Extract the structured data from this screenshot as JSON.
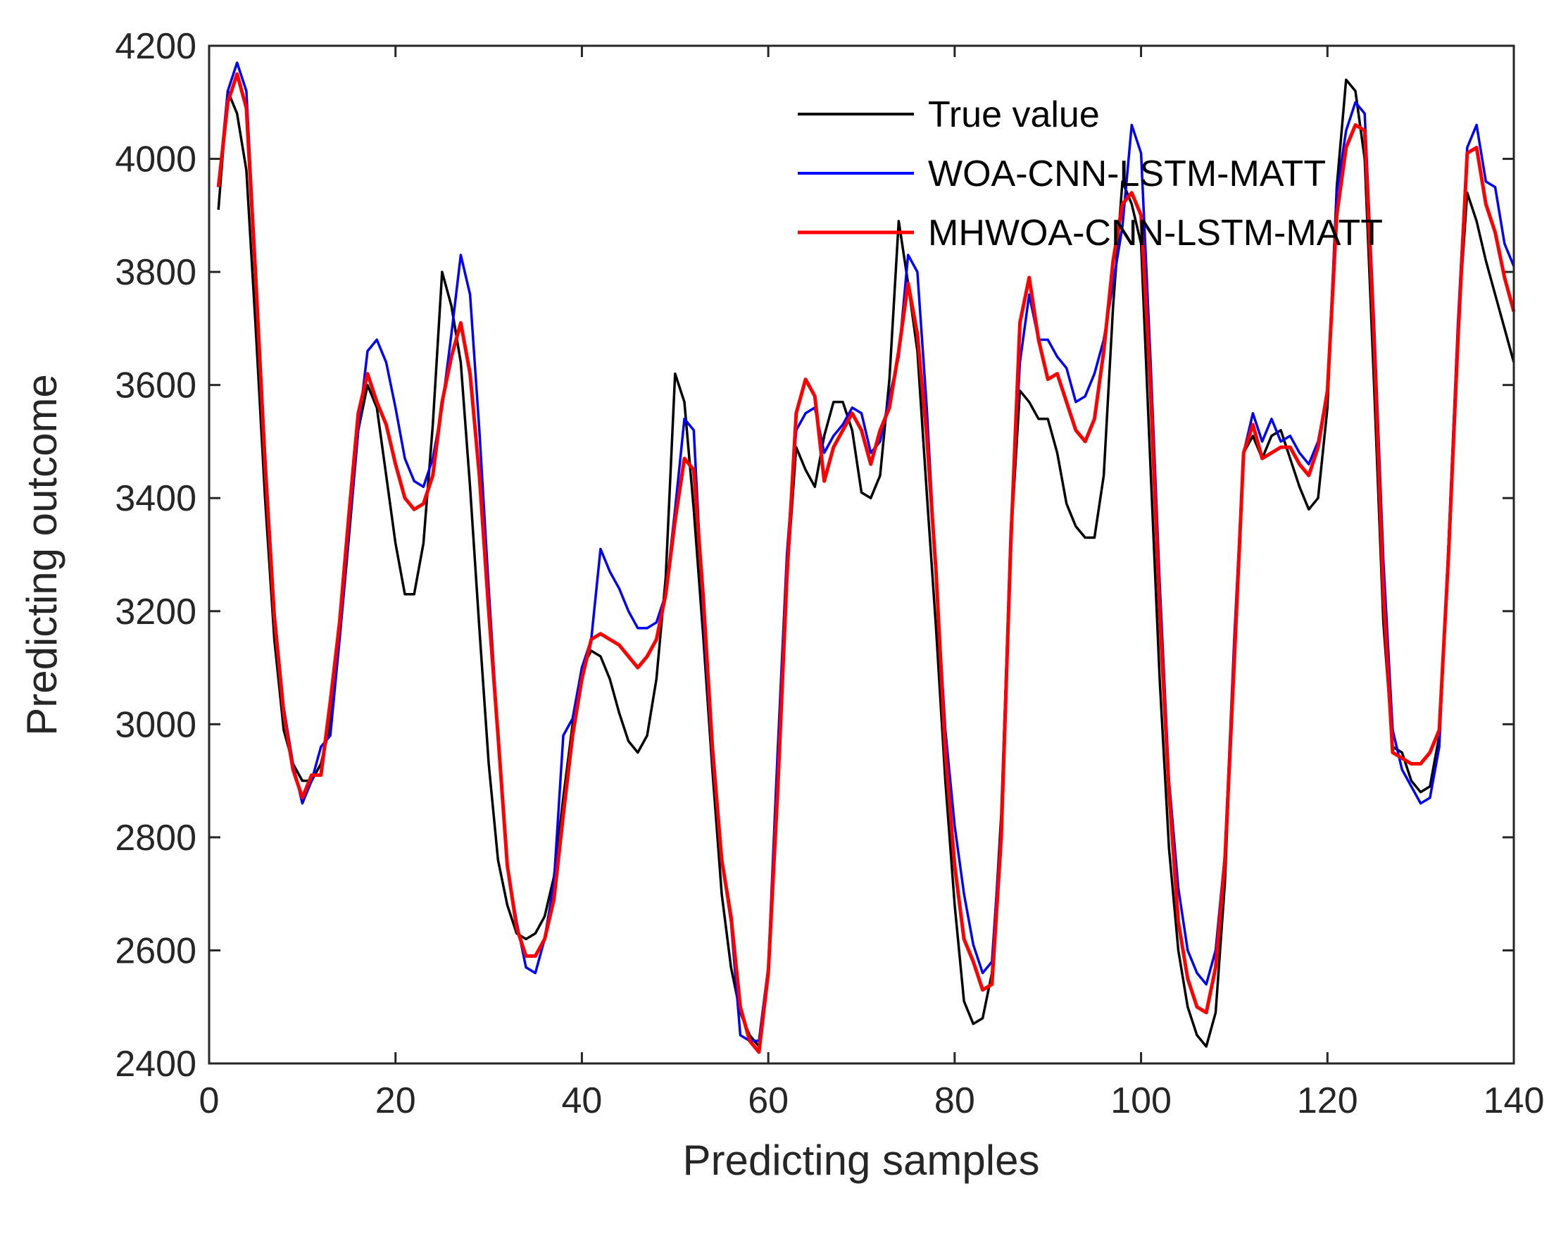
{
  "chart_data": {
    "type": "line",
    "title": "",
    "xlabel": "Predicting samples",
    "ylabel": "Predicting outcome",
    "xlim": [
      0,
      140
    ],
    "ylim": [
      2400,
      4200
    ],
    "xticks": [
      0,
      20,
      40,
      60,
      80,
      100,
      120,
      140
    ],
    "yticks": [
      2400,
      2600,
      2800,
      3000,
      3200,
      3400,
      3600,
      3800,
      4000,
      4200
    ],
    "grid": false,
    "legend_position": "top-right",
    "x": [
      1,
      2,
      3,
      4,
      5,
      6,
      7,
      8,
      9,
      10,
      11,
      12,
      13,
      14,
      15,
      16,
      17,
      18,
      19,
      20,
      21,
      22,
      23,
      24,
      25,
      26,
      27,
      28,
      29,
      30,
      31,
      32,
      33,
      34,
      35,
      36,
      37,
      38,
      39,
      40,
      41,
      42,
      43,
      44,
      45,
      46,
      47,
      48,
      49,
      50,
      51,
      52,
      53,
      54,
      55,
      56,
      57,
      58,
      59,
      60,
      61,
      62,
      63,
      64,
      65,
      66,
      67,
      68,
      69,
      70,
      71,
      72,
      73,
      74,
      75,
      76,
      77,
      78,
      79,
      80,
      81,
      82,
      83,
      84,
      85,
      86,
      87,
      88,
      89,
      90,
      91,
      92,
      93,
      94,
      95,
      96,
      97,
      98,
      99,
      100,
      101,
      102,
      103,
      104,
      105,
      106,
      107,
      108,
      109,
      110,
      111,
      112,
      113,
      114,
      115,
      116,
      117,
      118,
      119,
      120,
      121,
      122,
      123,
      124,
      125,
      126,
      127,
      128,
      129,
      130,
      131,
      132,
      133,
      134,
      135,
      136,
      137,
      138,
      139,
      140
    ],
    "series": [
      {
        "name": "True value",
        "color": "#000000",
        "values": [
          3910,
          4120,
          4080,
          3980,
          3700,
          3400,
          3150,
          2990,
          2930,
          2900,
          2900,
          2930,
          3000,
          3150,
          3330,
          3520,
          3600,
          3560,
          3440,
          3320,
          3230,
          3230,
          3320,
          3530,
          3800,
          3740,
          3640,
          3420,
          3170,
          2930,
          2760,
          2680,
          2630,
          2620,
          2630,
          2660,
          2730,
          2870,
          3000,
          3100,
          3130,
          3120,
          3080,
          3020,
          2970,
          2950,
          2980,
          3080,
          3260,
          3620,
          3570,
          3380,
          3160,
          2920,
          2700,
          2570,
          2490,
          2450,
          2430,
          2560,
          2880,
          3260,
          3490,
          3450,
          3420,
          3510,
          3570,
          3570,
          3520,
          3410,
          3400,
          3440,
          3610,
          3890,
          3780,
          3660,
          3410,
          3170,
          2900,
          2680,
          2510,
          2470,
          2480,
          2560,
          2840,
          3320,
          3590,
          3570,
          3540,
          3540,
          3480,
          3390,
          3350,
          3330,
          3330,
          3440,
          3740,
          3960,
          3920,
          3850,
          3460,
          3080,
          2780,
          2600,
          2500,
          2450,
          2430,
          2490,
          2720,
          3130,
          3480,
          3510,
          3470,
          3510,
          3520,
          3470,
          3420,
          3380,
          3400,
          3560,
          3950,
          4140,
          4120,
          4000,
          3600,
          3180,
          2960,
          2950,
          2900,
          2880,
          2890,
          2980,
          3320,
          3700,
          3940,
          3890,
          3820,
          3760,
          3700,
          3640
        ]
      },
      {
        "name": "WOA-CNN-LSTM-MATT",
        "color": "#0000ff",
        "values": [
          3950,
          4120,
          4170,
          4120,
          3800,
          3480,
          3200,
          3030,
          2930,
          2860,
          2900,
          2960,
          2980,
          3150,
          3340,
          3520,
          3660,
          3680,
          3640,
          3560,
          3470,
          3430,
          3420,
          3470,
          3560,
          3690,
          3830,
          3760,
          3520,
          3240,
          2980,
          2750,
          2650,
          2570,
          2560,
          2620,
          2720,
          2980,
          3010,
          3100,
          3150,
          3310,
          3270,
          3240,
          3200,
          3170,
          3170,
          3180,
          3230,
          3380,
          3540,
          3520,
          3200,
          2940,
          2760,
          2650,
          2450,
          2440,
          2440,
          2570,
          2950,
          3300,
          3520,
          3550,
          3560,
          3480,
          3510,
          3530,
          3560,
          3550,
          3480,
          3500,
          3580,
          3650,
          3830,
          3800,
          3560,
          3260,
          2990,
          2820,
          2700,
          2610,
          2560,
          2580,
          2820,
          3340,
          3640,
          3760,
          3680,
          3680,
          3650,
          3630,
          3570,
          3580,
          3620,
          3680,
          3780,
          3880,
          4060,
          4010,
          3650,
          3250,
          2900,
          2710,
          2600,
          2560,
          2540,
          2600,
          2770,
          3150,
          3480,
          3550,
          3500,
          3540,
          3500,
          3510,
          3480,
          3460,
          3500,
          3590,
          3940,
          4050,
          4100,
          4080,
          3710,
          3290,
          2990,
          2920,
          2890,
          2860,
          2870,
          2960,
          3320,
          3710,
          4020,
          4060,
          3960,
          3950,
          3850,
          3810
        ]
      },
      {
        "name": "MHWOA-CNN-LSTM-MATT",
        "color": "#ff0000",
        "values": [
          3950,
          4100,
          4150,
          4090,
          3790,
          3460,
          3190,
          3020,
          2920,
          2870,
          2910,
          2910,
          3040,
          3180,
          3370,
          3550,
          3620,
          3570,
          3530,
          3460,
          3400,
          3380,
          3390,
          3440,
          3570,
          3650,
          3710,
          3620,
          3440,
          3200,
          2980,
          2750,
          2640,
          2590,
          2590,
          2620,
          2690,
          2840,
          2980,
          3080,
          3150,
          3160,
          3150,
          3140,
          3120,
          3100,
          3120,
          3150,
          3230,
          3360,
          3470,
          3450,
          3230,
          2960,
          2760,
          2660,
          2500,
          2440,
          2420,
          2560,
          2880,
          3260,
          3550,
          3610,
          3580,
          3430,
          3490,
          3520,
          3550,
          3520,
          3460,
          3520,
          3560,
          3660,
          3780,
          3690,
          3510,
          3270,
          2950,
          2750,
          2620,
          2580,
          2530,
          2540,
          2800,
          3310,
          3710,
          3790,
          3680,
          3610,
          3620,
          3570,
          3520,
          3500,
          3540,
          3660,
          3820,
          3920,
          3940,
          3900,
          3600,
          3200,
          2880,
          2650,
          2550,
          2500,
          2490,
          2570,
          2760,
          3110,
          3480,
          3530,
          3470,
          3480,
          3490,
          3490,
          3460,
          3440,
          3490,
          3590,
          3900,
          4020,
          4060,
          4050,
          3680,
          3230,
          2950,
          2940,
          2930,
          2930,
          2950,
          2990,
          3300,
          3680,
          4010,
          4020,
          3920,
          3870,
          3790,
          3730
        ]
      }
    ]
  }
}
